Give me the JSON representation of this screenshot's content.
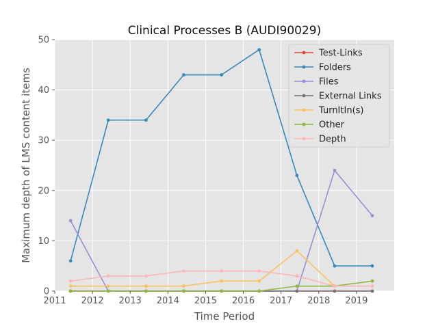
{
  "chart_data": {
    "type": "line",
    "title": "Clinical Processes B (AUDI90029)",
    "xlabel": "Time Period",
    "ylabel": "Maximum depth of LMS content items",
    "xlim": [
      2011,
      2020
    ],
    "ylim": [
      0,
      50
    ],
    "xticks": [
      2011,
      2012,
      2013,
      2014,
      2015,
      2016,
      2017,
      2018,
      2019
    ],
    "yticks": [
      0,
      10,
      20,
      30,
      40,
      50
    ],
    "x": [
      2011.42,
      2012.42,
      2013.42,
      2014.42,
      2015.42,
      2016.42,
      2017.42,
      2018.42,
      2019.42
    ],
    "grid": true,
    "legend_position": "top-right",
    "series": [
      {
        "name": "Test-Links",
        "color": "#E24A33",
        "values": [
          0,
          0,
          0,
          0,
          0,
          0,
          0,
          0,
          0
        ]
      },
      {
        "name": "Folders",
        "color": "#348ABD",
        "values": [
          6,
          34,
          34,
          43,
          43,
          48,
          23,
          5,
          5
        ]
      },
      {
        "name": "Files",
        "color": "#988ED5",
        "values": [
          14,
          0,
          0,
          0,
          0,
          0,
          0,
          24,
          15
        ]
      },
      {
        "name": "External Links",
        "color": "#777777",
        "values": [
          0,
          0,
          0,
          0,
          0,
          0,
          0,
          0,
          0
        ]
      },
      {
        "name": "TurnItIn(s)",
        "color": "#FBC15E",
        "values": [
          1,
          1,
          1,
          1,
          2,
          2,
          8,
          1,
          1
        ]
      },
      {
        "name": "Other",
        "color": "#8EBA42",
        "values": [
          0,
          0,
          0,
          0,
          0,
          0,
          1,
          1,
          2
        ]
      },
      {
        "name": "Depth",
        "color": "#FFB5B8",
        "values": [
          2,
          3,
          3,
          4,
          4,
          4,
          3,
          1,
          1
        ]
      }
    ]
  }
}
